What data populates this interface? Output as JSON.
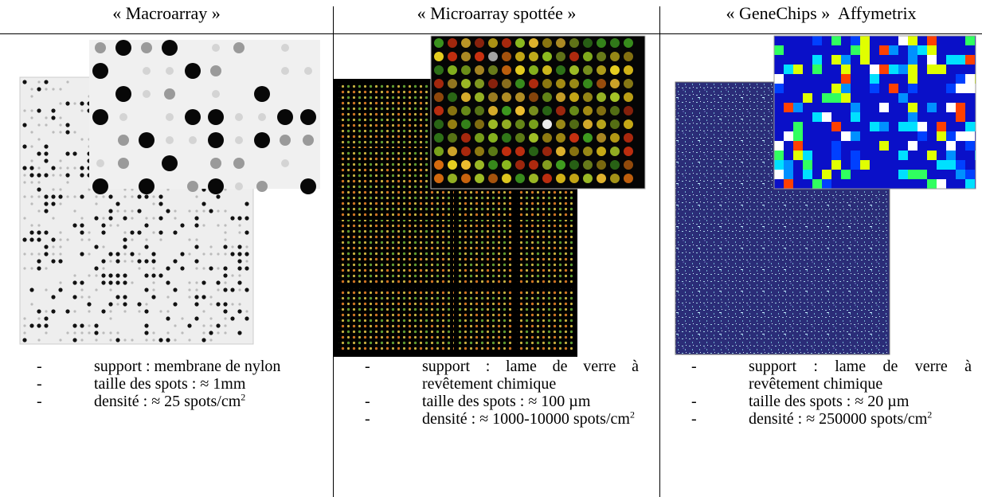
{
  "columns": [
    {
      "title": "« Macroarray »",
      "items": [
        {
          "text": "support : membrane de nylon"
        },
        {
          "text": "taille des spots : ≈ 1mm"
        },
        {
          "text": "densité : ≈ 25 spots/cm",
          "sup": "2"
        }
      ]
    },
    {
      "title": "« Microarray spottée »",
      "items": [
        {
          "text": "support : lame de verre à revêtement chimique"
        },
        {
          "text": "taille des spots : ≈ 100 µm"
        },
        {
          "text": "densité : ≈ 1000-10000 spots/cm",
          "sup": "2"
        }
      ]
    },
    {
      "title": "« GeneChips »  Affymetrix",
      "items": [
        {
          "text": "support : lame de verre à revêtement chimique"
        },
        {
          "text": "taille des spots : ≈ 20 µm"
        },
        {
          "text": "densité : ≈ 250000 spots/cm",
          "sup": "2"
        }
      ]
    }
  ]
}
